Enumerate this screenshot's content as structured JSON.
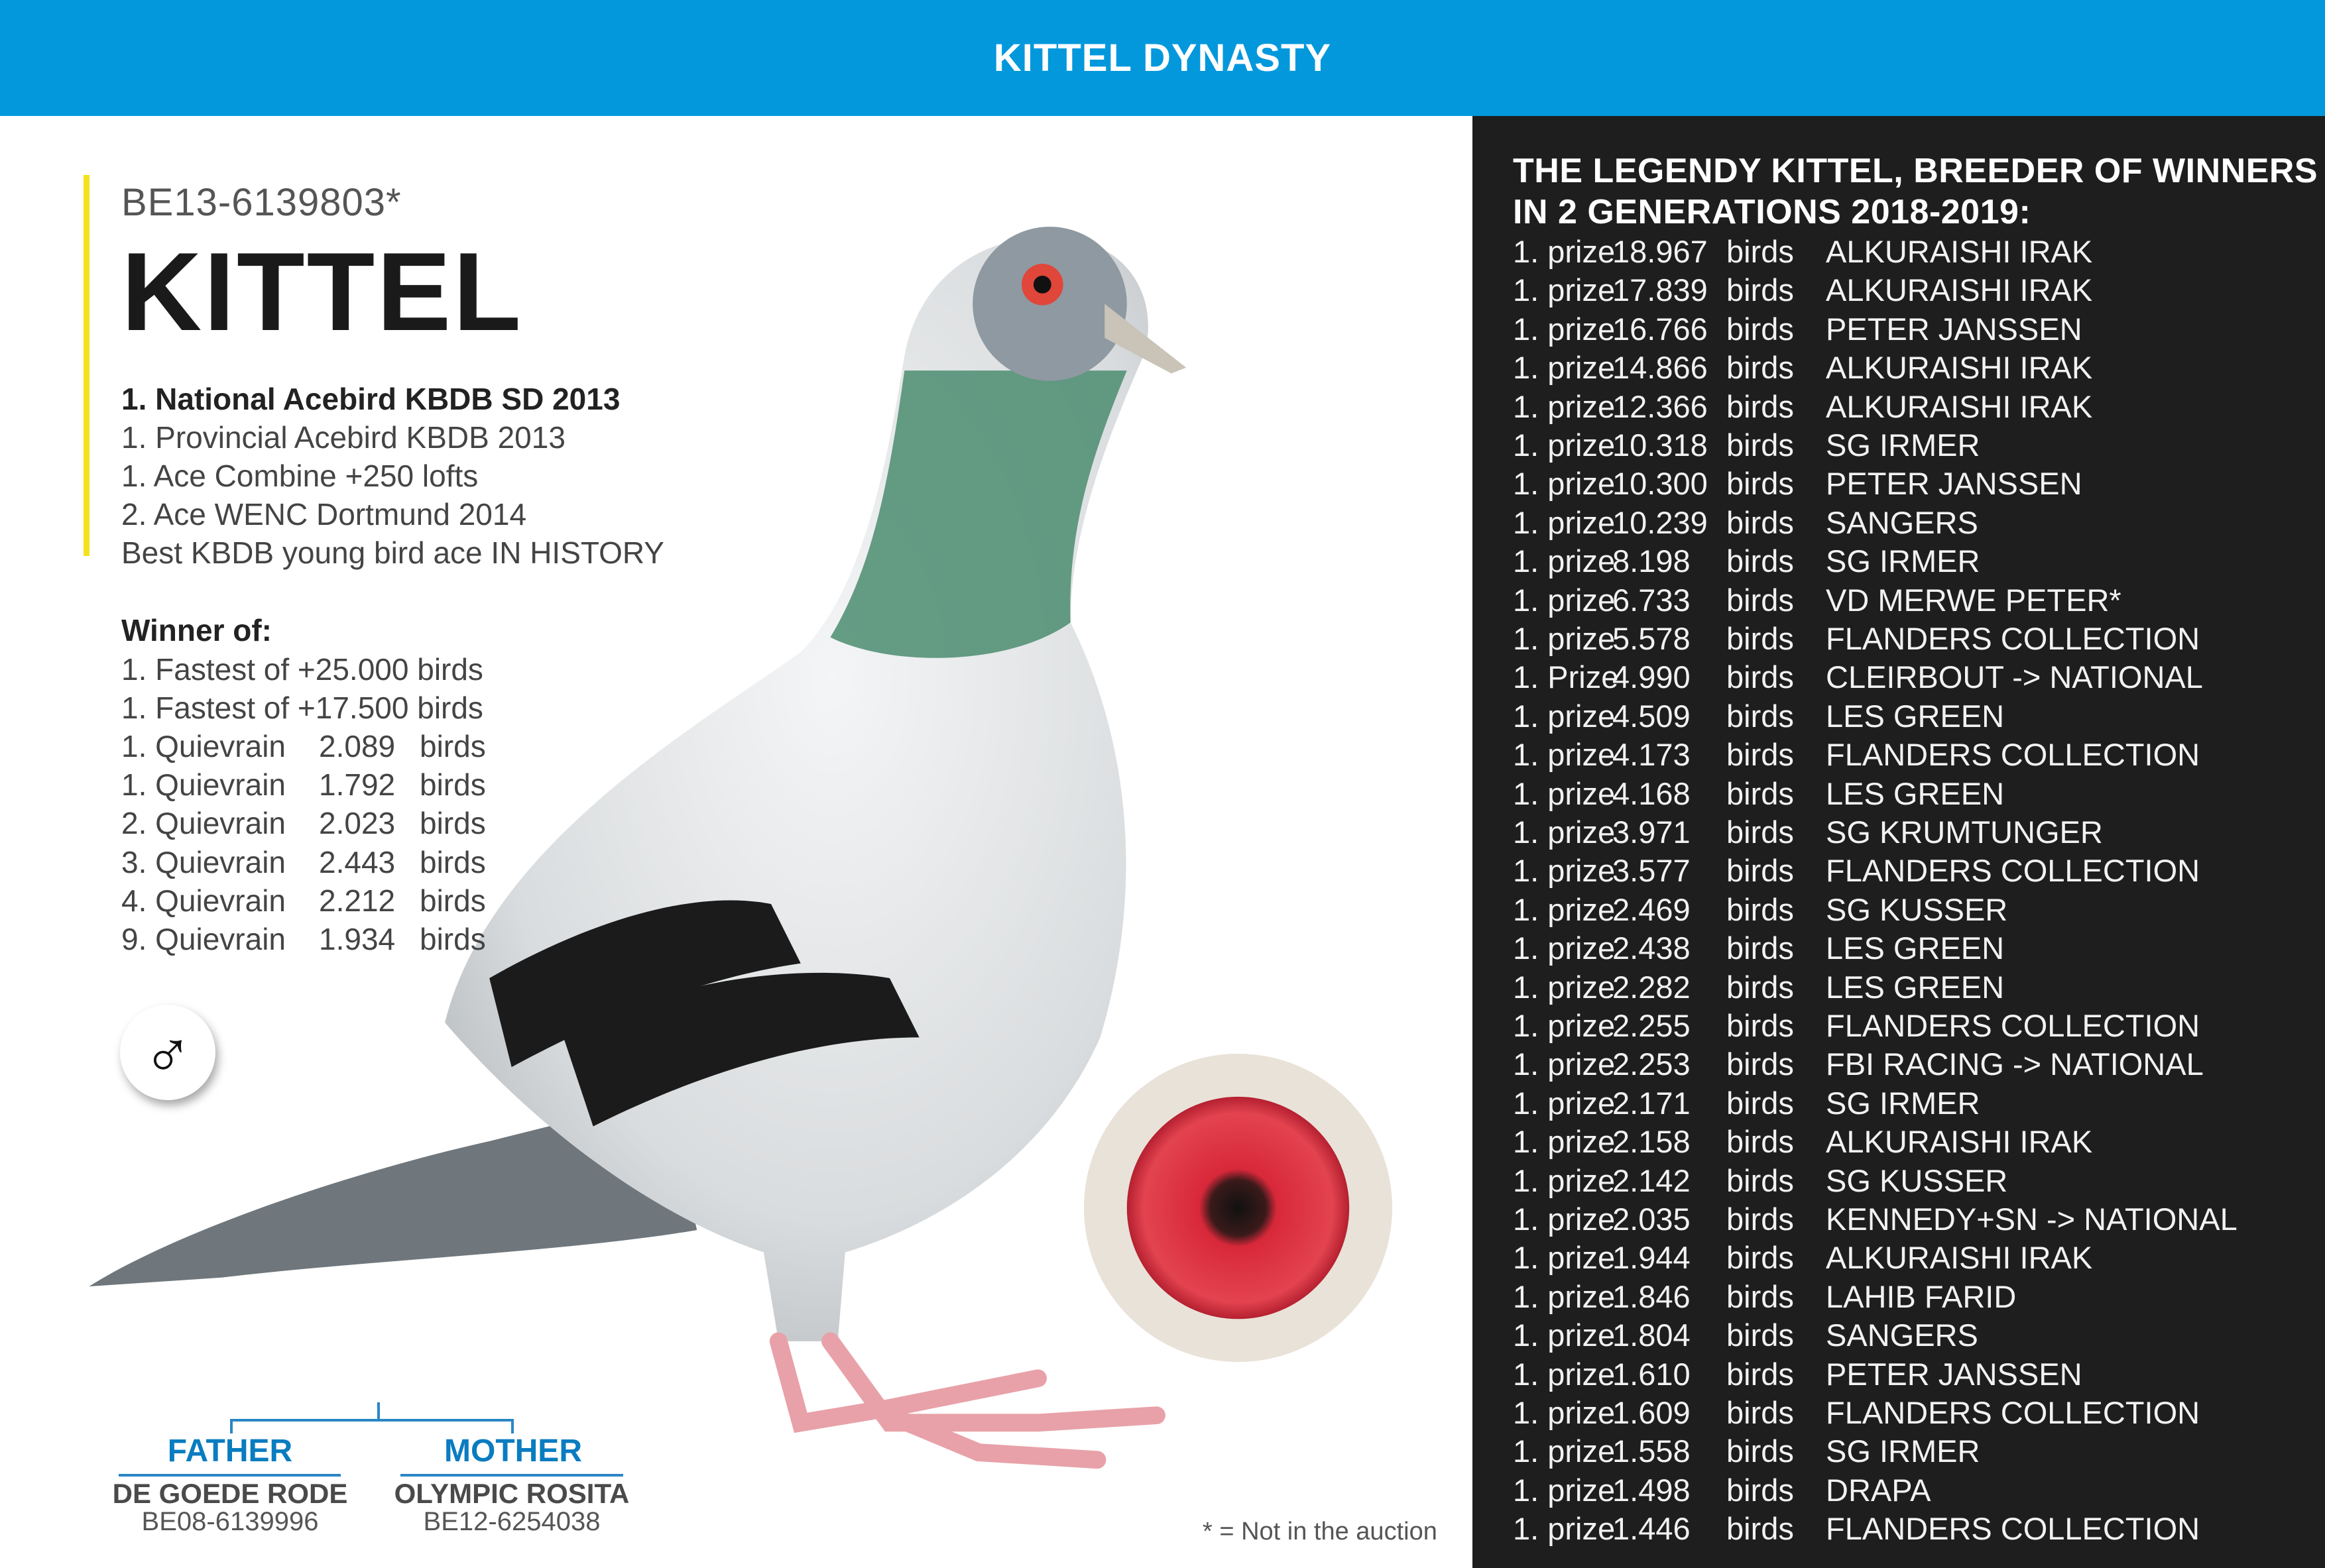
{
  "header": {
    "title": "KITTEL DYNASTY"
  },
  "colors": {
    "header": "#0398dc",
    "panel": "#1e1e1e",
    "accent_bar": "#f4e21c",
    "pedigree": "#0a7cc0"
  },
  "bird": {
    "ring": "BE13-6139803*",
    "name": "KITTEL",
    "sex_icon": "male-symbol",
    "sex_symbol": "♂",
    "achievements": [
      "1. National Acebird KBDB SD 2013",
      "1. Provincial Acebird KBDB 2013",
      "1. Ace Combine +250 lofts",
      "2. Ace WENC Dortmund 2014",
      "Best KBDB young bird ace IN HISTORY"
    ],
    "winner_title": "Winner of:",
    "winner_lines": [
      "1. Fastest of +25.000 birds",
      "1. Fastest of +17.500 birds"
    ],
    "winner_rows": [
      {
        "place": "1. Quievrain",
        "count": "2.089",
        "unit": "birds"
      },
      {
        "place": "1. Quievrain",
        "count": "1.792",
        "unit": "birds"
      },
      {
        "place": "2. Quievrain",
        "count": "2.023",
        "unit": "birds"
      },
      {
        "place": "3. Quievrain",
        "count": "2.443",
        "unit": "birds"
      },
      {
        "place": "4. Quievrain",
        "count": "2.212",
        "unit": "birds"
      },
      {
        "place": "9. Quievrain",
        "count": "1.934",
        "unit": "birds"
      }
    ]
  },
  "pedigree": {
    "father": {
      "label": "FATHER",
      "name": "DE GOEDE RODE",
      "ring": "BE08-6139996"
    },
    "mother": {
      "label": "MOTHER",
      "name": "OLYMPIC ROSITA",
      "ring": "BE12-6254038"
    }
  },
  "footnote": "* = Not in the auction",
  "panel": {
    "title_line1": "THE LEGENDY KITTEL, BREEDER OF WINNERS",
    "title_line2": "IN 2 GENERATIONS 2018-2019:",
    "rows": [
      {
        "prize": "1. prize",
        "count": "18.967",
        "unit": "birds",
        "owner": "ALKURAISHI IRAK"
      },
      {
        "prize": "1. prize",
        "count": "17.839",
        "unit": "birds",
        "owner": "ALKURAISHI IRAK"
      },
      {
        "prize": "1. prize",
        "count": "16.766",
        "unit": "birds",
        "owner": "PETER JANSSEN"
      },
      {
        "prize": "1. prize",
        "count": "14.866",
        "unit": "birds",
        "owner": "ALKURAISHI IRAK"
      },
      {
        "prize": "1. prize",
        "count": "12.366",
        "unit": "birds",
        "owner": "ALKURAISHI IRAK"
      },
      {
        "prize": "1. prize",
        "count": "10.318",
        "unit": "birds",
        "owner": "SG IRMER"
      },
      {
        "prize": "1. prize",
        "count": "10.300",
        "unit": "birds",
        "owner": "PETER JANSSEN"
      },
      {
        "prize": "1. prize",
        "count": "10.239",
        "unit": "birds",
        "owner": "SANGERS"
      },
      {
        "prize": "1. prize",
        "count": "8.198",
        "unit": "birds",
        "owner": "SG IRMER"
      },
      {
        "prize": "1. prize",
        "count": "6.733",
        "unit": "birds",
        "owner": "VD MERWE PETER*"
      },
      {
        "prize": "1. prize",
        "count": "5.578",
        "unit": "birds",
        "owner": "FLANDERS COLLECTION"
      },
      {
        "prize": "1. Prize",
        "count": "4.990",
        "unit": "birds",
        "owner": "CLEIRBOUT -> NATIONAL"
      },
      {
        "prize": "1. prize",
        "count": "4.509",
        "unit": "birds",
        "owner": "LES GREEN"
      },
      {
        "prize": "1. prize",
        "count": "4.173",
        "unit": "birds",
        "owner": "FLANDERS COLLECTION"
      },
      {
        "prize": "1. prize",
        "count": "4.168",
        "unit": "birds",
        "owner": "LES GREEN"
      },
      {
        "prize": "1. prize",
        "count": "3.971",
        "unit": "birds",
        "owner": "SG KRUMTUNGER"
      },
      {
        "prize": "1. prize",
        "count": "3.577",
        "unit": "birds",
        "owner": "FLANDERS COLLECTION"
      },
      {
        "prize": "1. prize",
        "count": "2.469",
        "unit": "birds",
        "owner": "SG KUSSER"
      },
      {
        "prize": "1. prize",
        "count": "2.438",
        "unit": "birds",
        "owner": "LES GREEN"
      },
      {
        "prize": "1. prize",
        "count": "2.282",
        "unit": "birds",
        "owner": "LES GREEN"
      },
      {
        "prize": "1. prize",
        "count": "2.255",
        "unit": "birds",
        "owner": "FLANDERS COLLECTION"
      },
      {
        "prize": "1. prize",
        "count": "2.253",
        "unit": "birds",
        "owner": "FBI RACING -> NATIONAL"
      },
      {
        "prize": "1. prize",
        "count": "2.171",
        "unit": "birds",
        "owner": "SG IRMER"
      },
      {
        "prize": "1. prize",
        "count": "2.158",
        "unit": "birds",
        "owner": "ALKURAISHI IRAK"
      },
      {
        "prize": "1. prize",
        "count": "2.142",
        "unit": "birds",
        "owner": "SG KUSSER"
      },
      {
        "prize": "1. prize",
        "count": "2.035",
        "unit": "birds",
        "owner": "KENNEDY+SN -> NATIONAL"
      },
      {
        "prize": "1. prize",
        "count": "1.944",
        "unit": "birds",
        "owner": "ALKURAISHI IRAK"
      },
      {
        "prize": "1. prize",
        "count": "1.846",
        "unit": "birds",
        "owner": "LAHIB FARID"
      },
      {
        "prize": "1. prize",
        "count": "1.804",
        "unit": "birds",
        "owner": "SANGERS"
      },
      {
        "prize": "1. prize",
        "count": "1.610",
        "unit": "birds",
        "owner": "PETER JANSSEN"
      },
      {
        "prize": "1. prize",
        "count": "1.609",
        "unit": "birds",
        "owner": "FLANDERS COLLECTION"
      },
      {
        "prize": "1. prize",
        "count": "1.558",
        "unit": "birds",
        "owner": "SG IRMER"
      },
      {
        "prize": "1. prize",
        "count": "1.498",
        "unit": "birds",
        "owner": "DRAPA"
      },
      {
        "prize": "1. prize",
        "count": "1.446",
        "unit": "birds",
        "owner": "FLANDERS COLLECTION"
      }
    ]
  }
}
